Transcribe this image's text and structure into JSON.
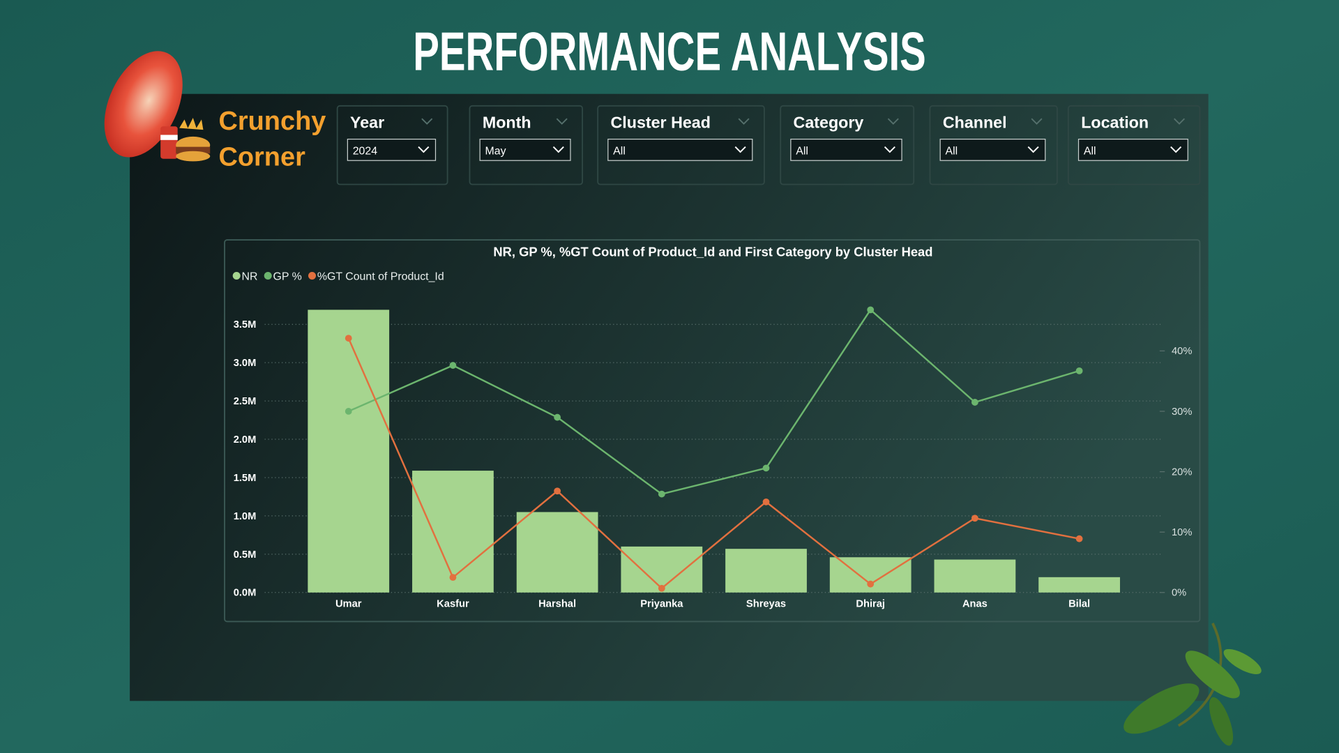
{
  "header": {
    "title": "PERFORMANCE ANALYSIS",
    "brand": [
      "Crunchy",
      "Corner"
    ]
  },
  "filters": [
    {
      "label": "Year",
      "value": "2024"
    },
    {
      "label": "Month",
      "value": "May"
    },
    {
      "label": "Cluster Head",
      "value": "All"
    },
    {
      "label": "Category",
      "value": "All"
    },
    {
      "label": "Channel",
      "value": "All"
    },
    {
      "label": "Location",
      "value": "All"
    }
  ],
  "chart_data": {
    "type": "combo",
    "title": "NR, GP %, %GT Count of Product_Id and First Category by Cluster Head",
    "categories": [
      "Umar",
      "Kasfur",
      "Harshal",
      "Priyanka",
      "Shreyas",
      "Dhiraj",
      "Anas",
      "Bilal"
    ],
    "series": [
      {
        "name": "NR",
        "type": "bar",
        "color": "#a6d58f",
        "values": [
          3690000,
          1590000,
          1050000,
          600000,
          570000,
          460000,
          430000,
          200000
        ]
      },
      {
        "name": "GP %",
        "type": "line",
        "axis": "y2",
        "color": "#6cb56e",
        "values": [
          30.0,
          37.6,
          29.0,
          16.3,
          20.6,
          46.8,
          31.5,
          36.7
        ]
      },
      {
        "name": "%GT Count of Product_Id",
        "type": "line",
        "axis": "y2",
        "color": "#e2703f",
        "values": [
          42.1,
          2.5,
          16.8,
          0.7,
          15.0,
          1.4,
          12.3,
          8.9
        ]
      }
    ],
    "ylim": [
      0,
      3800000
    ],
    "yticks": [
      {
        "value": 0,
        "label": "0.0M"
      },
      {
        "value": 500000,
        "label": "0.5M"
      },
      {
        "value": 1000000,
        "label": "1.0M"
      },
      {
        "value": 1500000,
        "label": "1.5M"
      },
      {
        "value": 2000000,
        "label": "2.0M"
      },
      {
        "value": 2500000,
        "label": "2.5M"
      },
      {
        "value": 3000000,
        "label": "3.0M"
      },
      {
        "value": 3500000,
        "label": "3.5M"
      }
    ],
    "y2lim": [
      0,
      48.2
    ],
    "y2ticks": [
      {
        "value": 0,
        "label": "0%"
      },
      {
        "value": 10,
        "label": "10%"
      },
      {
        "value": 20,
        "label": "20%"
      },
      {
        "value": 30,
        "label": "30%"
      },
      {
        "value": 40,
        "label": "40%"
      }
    ],
    "grid": true,
    "legend": "top-left"
  }
}
